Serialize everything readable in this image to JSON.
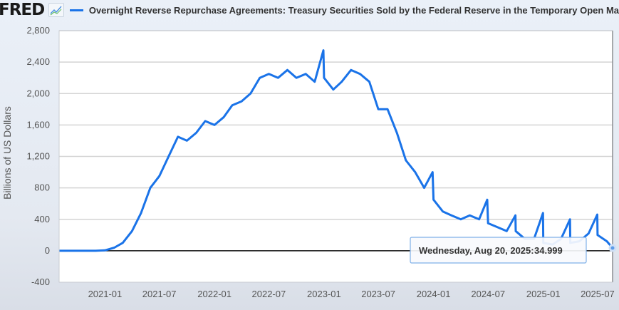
{
  "header": {
    "logo": "FRED",
    "logo_icon": "chart-line-icon",
    "series_title": "Overnight Reverse Repurchase Agreements: Treasury Securities Sold by the Federal Reserve in the Temporary Open Ma"
  },
  "colors": {
    "series": "#1a73e8",
    "zero_line": "#111111",
    "grid": "#d4d4d4"
  },
  "tooltip": {
    "date": "Wednesday, Aug 20, 2025:",
    "value": "34.999"
  },
  "chart_data": {
    "type": "line",
    "title": "Overnight Reverse Repurchase Agreements: Treasury Securities Sold by the Federal Reserve in the Temporary Open Ma",
    "xlabel": "",
    "ylabel": "Billions of US Dollars",
    "ylim": [
      -400,
      2800
    ],
    "xlim": [
      "2020-08",
      "2025-08-20"
    ],
    "grid": true,
    "legend": "top-left",
    "yticks": [
      "2,800",
      "2,400",
      "2,000",
      "1,600",
      "1,200",
      "800",
      "400",
      "0",
      "-400"
    ],
    "ytick_values": [
      2800,
      2400,
      2000,
      1600,
      1200,
      800,
      400,
      0,
      -400
    ],
    "xticks": [
      "2021-01",
      "2021-07",
      "2022-01",
      "2022-07",
      "2023-01",
      "2023-07",
      "2024-01",
      "2024-07",
      "2025-01",
      "2025-07"
    ],
    "series": [
      {
        "name": "Overnight Reverse Repurchase Agreements",
        "x": [
          "2020-08",
          "2020-09",
          "2020-10",
          "2020-11",
          "2020-12",
          "2021-01",
          "2021-02",
          "2021-03",
          "2021-04",
          "2021-05",
          "2021-06",
          "2021-07",
          "2021-08",
          "2021-09",
          "2021-10",
          "2021-11",
          "2021-12",
          "2022-01",
          "2022-02",
          "2022-03",
          "2022-04",
          "2022-05",
          "2022-06",
          "2022-07",
          "2022-08",
          "2022-09",
          "2022-10",
          "2022-11",
          "2022-12",
          "2022-12-30",
          "2023-01",
          "2023-02",
          "2023-03",
          "2023-04",
          "2023-05",
          "2023-06",
          "2023-07",
          "2023-08",
          "2023-09",
          "2023-10",
          "2023-11",
          "2023-12",
          "2023-12-29",
          "2024-01",
          "2024-02",
          "2024-03",
          "2024-04",
          "2024-05",
          "2024-06",
          "2024-06-28",
          "2024-07",
          "2024-08",
          "2024-09",
          "2024-09-30",
          "2024-10",
          "2024-11",
          "2024-12",
          "2024-12-31",
          "2025-01",
          "2025-02",
          "2025-03",
          "2025-03-31",
          "2025-04",
          "2025-05",
          "2025-06",
          "2025-06-30",
          "2025-07",
          "2025-08",
          "2025-08-20"
        ],
        "values": [
          0,
          0,
          0,
          0,
          0,
          5,
          40,
          100,
          250,
          480,
          800,
          950,
          1200,
          1450,
          1400,
          1500,
          1650,
          1600,
          1700,
          1850,
          1900,
          2000,
          2200,
          2250,
          2200,
          2300,
          2200,
          2250,
          2150,
          2550,
          2200,
          2050,
          2150,
          2300,
          2250,
          2150,
          1800,
          1800,
          1500,
          1150,
          1000,
          800,
          1000,
          650,
          500,
          450,
          400,
          450,
          400,
          650,
          350,
          300,
          250,
          450,
          250,
          150,
          150,
          480,
          100,
          80,
          150,
          400,
          100,
          120,
          220,
          460,
          200,
          120,
          35
        ]
      }
    ]
  }
}
